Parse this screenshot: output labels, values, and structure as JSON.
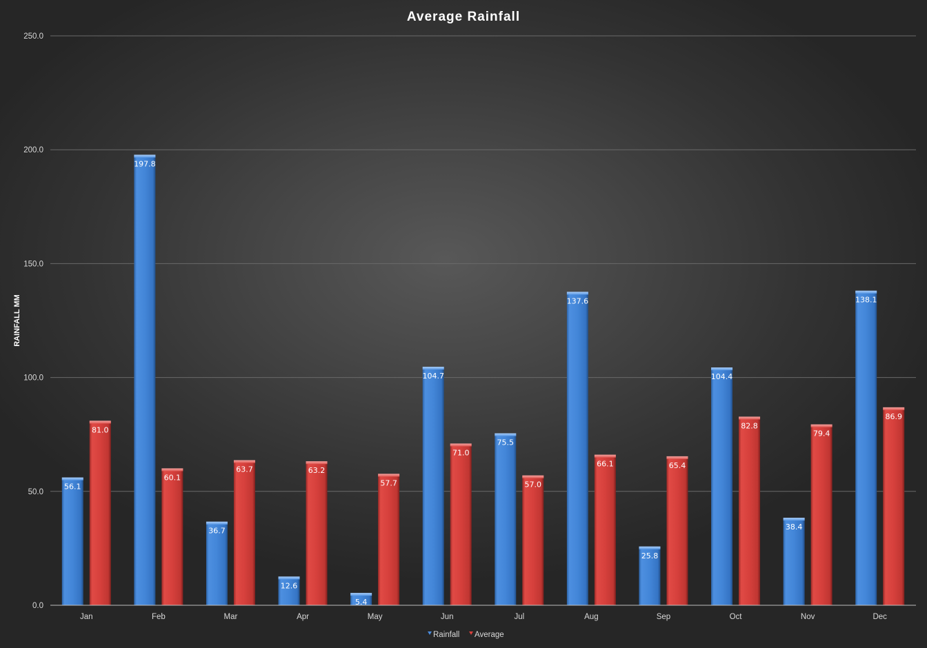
{
  "chart_data": {
    "type": "bar",
    "title": "Average Rainfall",
    "xlabel": "",
    "ylabel": "RAINFALL MM",
    "ylim": [
      0,
      250
    ],
    "y_ticks": [
      "0.0",
      "50.0",
      "100.0",
      "150.0",
      "200.0",
      "250.0"
    ],
    "grid": true,
    "legend_position": "bottom",
    "categories": [
      "Jan",
      "Feb",
      "Mar",
      "Apr",
      "May",
      "Jun",
      "Jul",
      "Aug",
      "Sep",
      "Oct",
      "Nov",
      "Dec"
    ],
    "series": [
      {
        "name": "Rainfall",
        "color": "#4a8bdc",
        "values": [
          56.1,
          197.8,
          36.7,
          12.6,
          5.4,
          104.7,
          75.5,
          137.6,
          25.8,
          104.4,
          38.4,
          138.1
        ],
        "labels": [
          "56.1",
          "197.8",
          "36.7",
          "12.6",
          "5.4",
          "104.7",
          "75.5",
          "137.6",
          "25.8",
          "104.4",
          "38.4",
          "138.1"
        ]
      },
      {
        "name": "Average",
        "color": "#d9403c",
        "values": [
          81.0,
          60.1,
          63.7,
          63.2,
          57.7,
          71.0,
          57.0,
          66.1,
          65.4,
          82.8,
          79.4,
          86.9
        ],
        "labels": [
          "81.0",
          "60.1",
          "63.7",
          "63.2",
          "57.7",
          "71.0",
          "57.0",
          "66.1",
          "65.4",
          "82.8",
          "79.4",
          "86.9"
        ]
      }
    ]
  }
}
